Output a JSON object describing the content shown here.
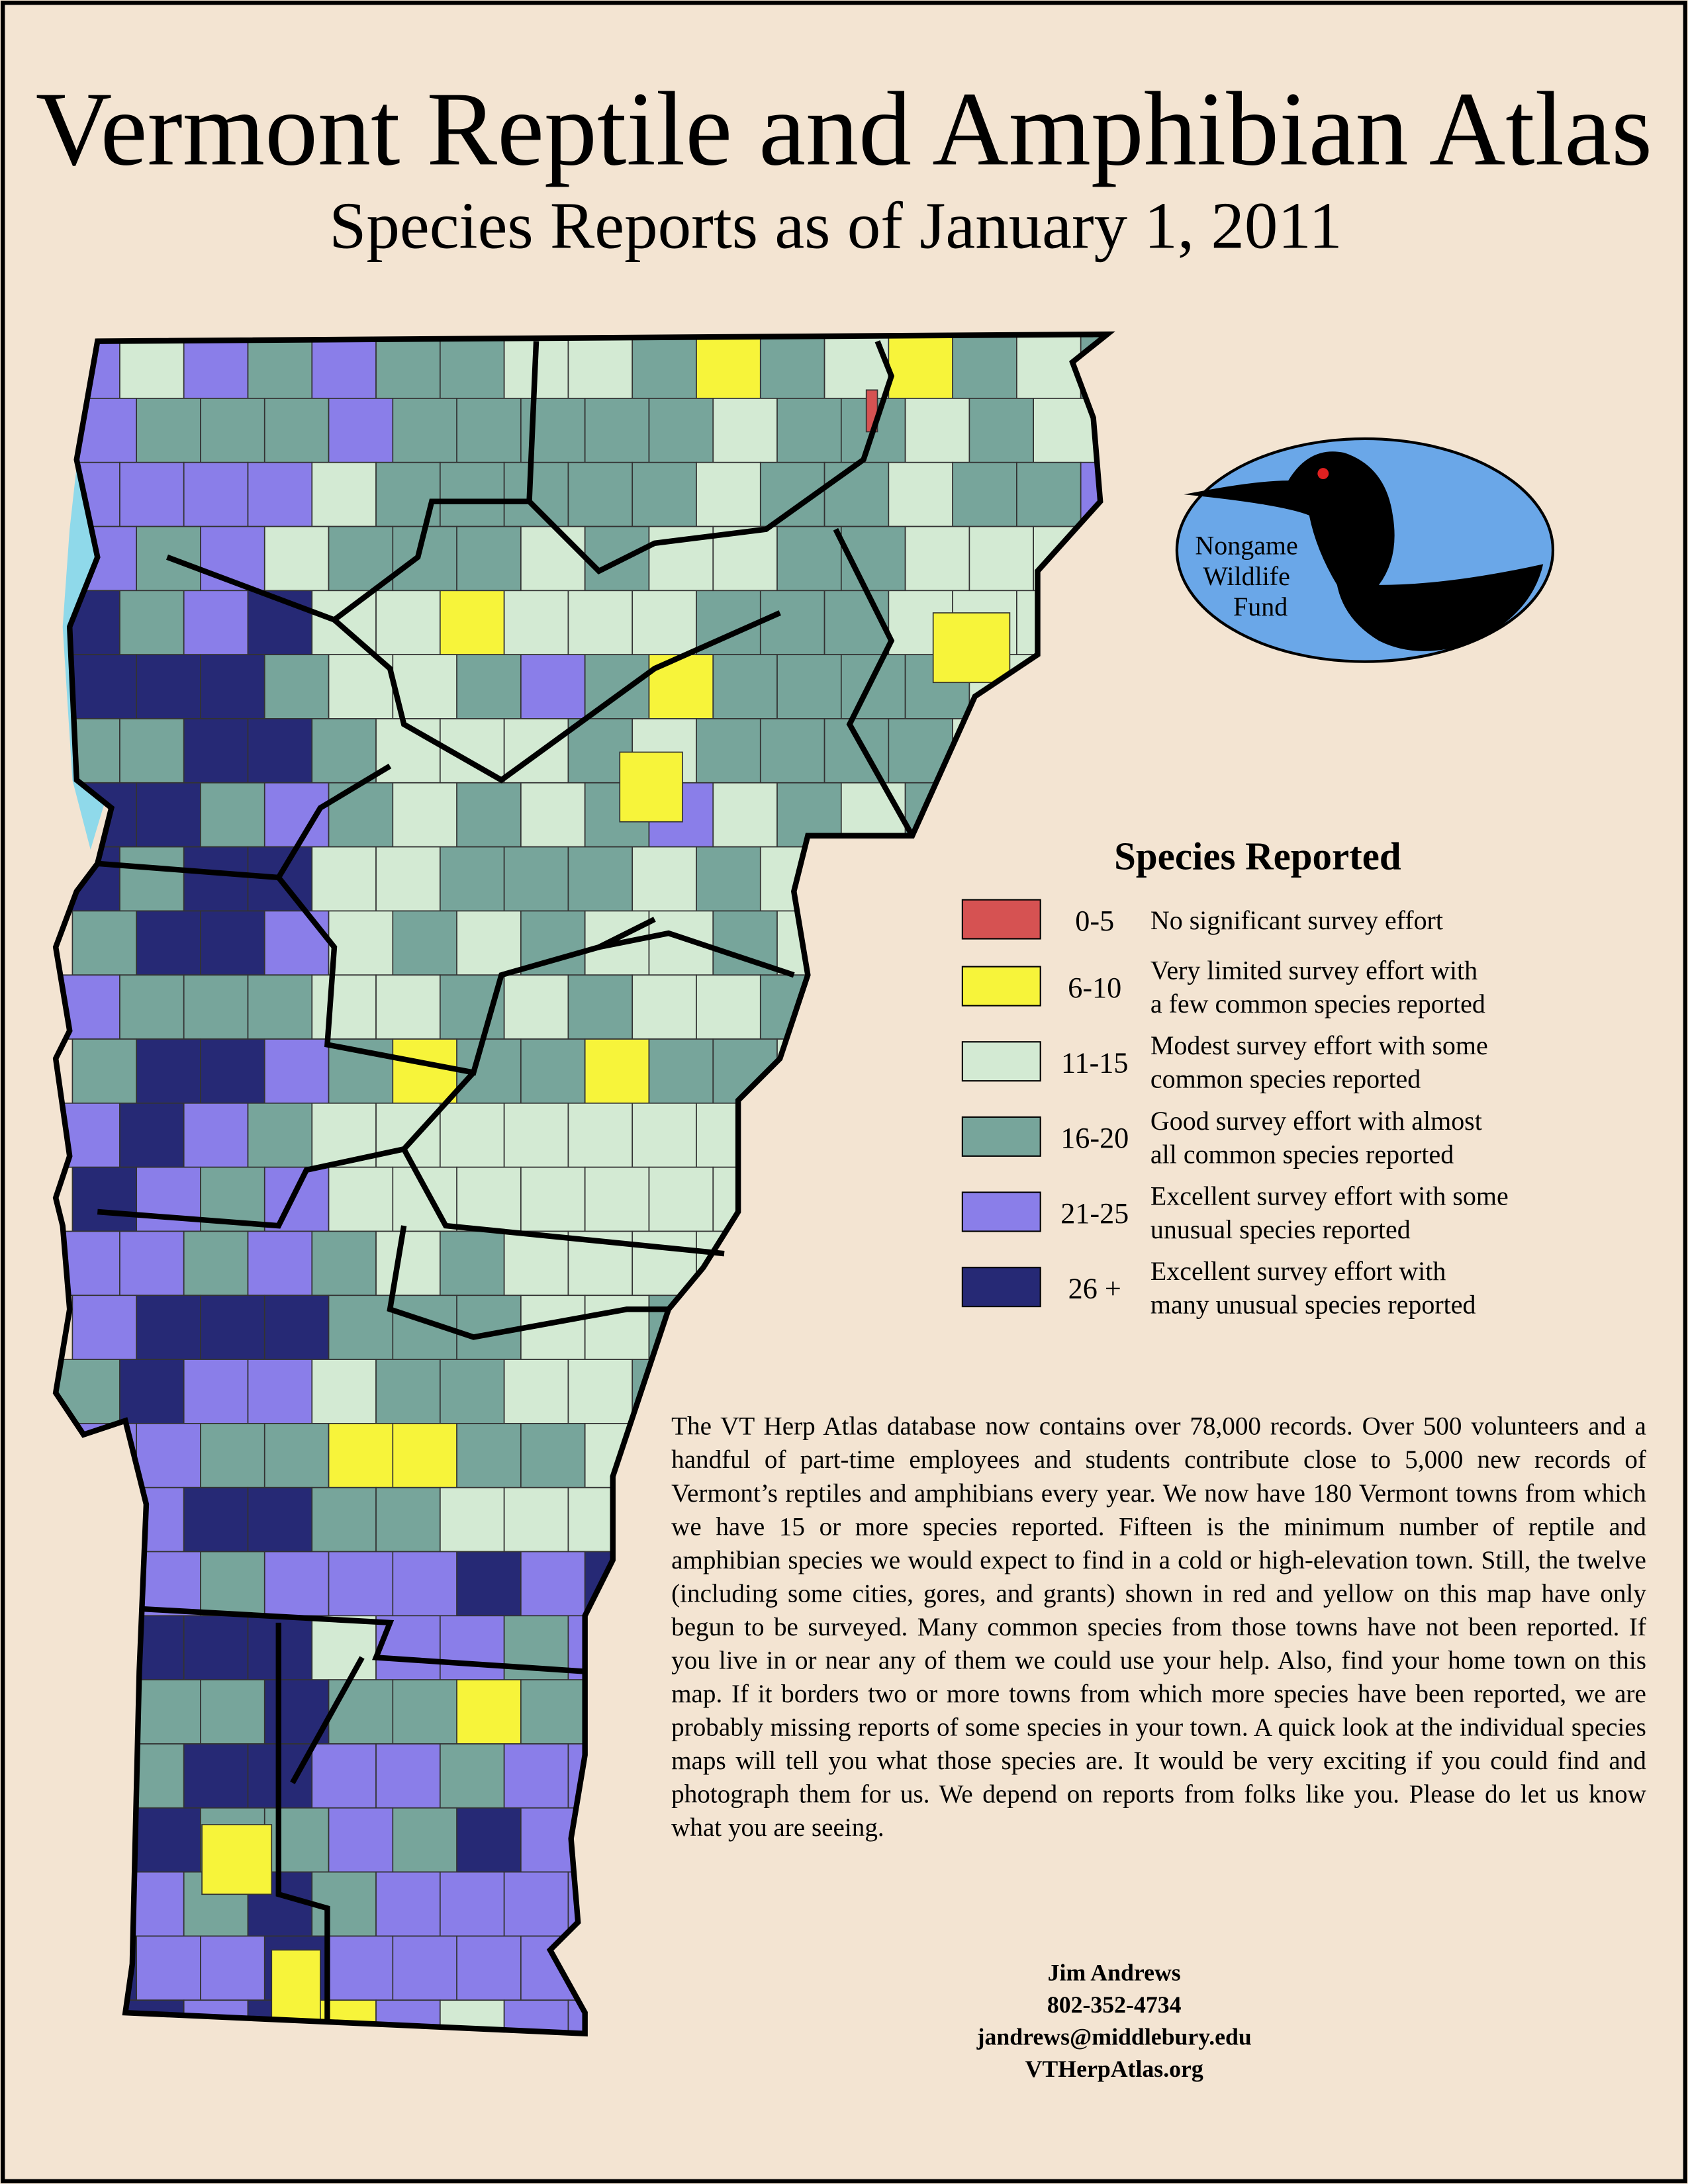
{
  "header": {
    "title": "Vermont Reptile and Amphibian Atlas",
    "subtitle": "Species Reports as of January 1, 2011"
  },
  "logo": {
    "lines": [
      "Nongame",
      "Wildlife",
      "Fund"
    ]
  },
  "legend": {
    "title": "Species Reported",
    "items": [
      {
        "range": "0-5",
        "description": [
          "No significant survey effort"
        ],
        "color": "#d65252"
      },
      {
        "range": "6-10",
        "description": [
          "Very limited survey effort with",
          "a few common species reported"
        ],
        "color": "#f7f43a"
      },
      {
        "range": "11-15",
        "description": [
          "Modest survey effort with some",
          "common species reported"
        ],
        "color": "#d3ead3"
      },
      {
        "range": "16-20",
        "description": [
          "Good survey effort with almost",
          "all common species reported"
        ],
        "color": "#77a59b"
      },
      {
        "range": "21-25",
        "description": [
          "Excellent survey effort with some",
          "unusual species reported"
        ],
        "color": "#8a7ee9"
      },
      {
        "range": "26 +",
        "description": [
          "Excellent survey effort with",
          "many unusual species reported"
        ],
        "color": "#262975"
      }
    ]
  },
  "body": {
    "text": "The VT Herp Atlas database now contains over 78,000 records. Over 500 volunteers and a handful of part-time employees and students contribute close to 5,000 new records of Vermont’s reptiles and amphibians every year. We now have 180 Vermont towns from which we have 15 or more species reported. Fifteen is the minimum number of reptile and amphibian species we would expect to find in a cold or high-elevation town. Still, the twelve (including some cities, gores, and grants) shown in red and yellow on this map have only begun to be surveyed. Many common species from those towns have not been reported. If you live in or near any of them we could use your help. Also, find your home town on this map. If it borders two or more towns from which more species have been reported, we are probably missing reports of some species in your town. A quick look at the individual species maps will tell you what those species are. It would be very exciting if you could find and photograph them for us. We depend on reports from folks like you. Please do let us know what you are seeing."
  },
  "contact": {
    "name": "Jim Andrews",
    "phone": "802-352-4734",
    "email": "jandrews@middlebury.edu",
    "website": "VTHerpAtlas.org"
  }
}
